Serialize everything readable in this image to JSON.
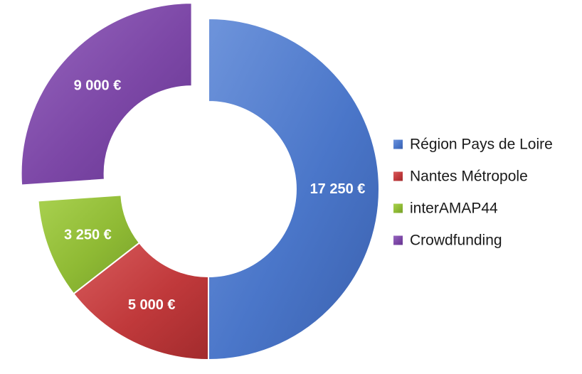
{
  "chart_data": {
    "type": "pie",
    "donut": true,
    "legend_position": "right",
    "exploded_slice": "Crowdfunding",
    "categories": [
      "Région Pays de Loire",
      "Nantes Métropole",
      "interAMAP44",
      "Crowdfunding"
    ],
    "values": [
      17250,
      5000,
      3250,
      9000
    ],
    "data_labels": [
      "17 250 €",
      "5 000 €",
      "3 250 €",
      "9 000 €"
    ],
    "colors": [
      "#4a76c9",
      "#c0393b",
      "#8fba34",
      "#7c47a6"
    ],
    "colors_dark": [
      "#3a60ad",
      "#a22b2d",
      "#76a02a",
      "#653590"
    ],
    "colors_light": [
      "#6e94db",
      "#d85c5d",
      "#a9d150",
      "#9767bf"
    ]
  }
}
